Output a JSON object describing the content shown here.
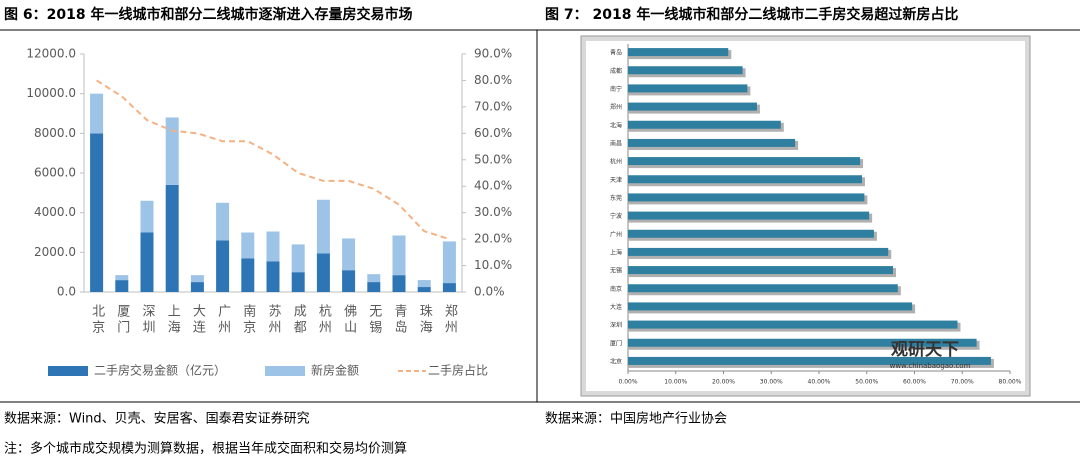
{
  "chart_data": [
    {
      "type": "stacked-bar-line",
      "title": "图 6：2018 年一线城市和部分二线城市逐渐进入存量房交易市场",
      "categories": [
        "北京",
        "厦门",
        "深圳",
        "上海",
        "大连",
        "广州",
        "南京",
        "苏州",
        "成都",
        "杭州",
        "佛山",
        "无锡",
        "青岛",
        "珠海",
        "郑州"
      ],
      "series": [
        {
          "name": "二手房交易金额（亿元）",
          "color": "#2e75b6",
          "values": [
            8000,
            600,
            3000,
            5400,
            500,
            2600,
            1700,
            1550,
            1000,
            1950,
            1100,
            500,
            850,
            250,
            450
          ]
        },
        {
          "name": "新房金额",
          "color": "#9dc3e6",
          "values": [
            2000,
            250,
            1600,
            3400,
            350,
            1900,
            1300,
            1500,
            1400,
            2700,
            1600,
            400,
            2000,
            350,
            2100
          ]
        },
        {
          "name": "二手房占比",
          "color": "#f4b183",
          "axis": "y2",
          "values": [
            80,
            74,
            65,
            61,
            60,
            57,
            57,
            52,
            45,
            42,
            42,
            39,
            33,
            23,
            20
          ]
        }
      ],
      "ylim": [
        0,
        12000
      ],
      "yticks": [
        {
          "value": 0,
          "label": "0.0"
        },
        {
          "value": 2000,
          "label": "2000.0"
        },
        {
          "value": 4000,
          "label": "4000.0"
        },
        {
          "value": 6000,
          "label": "6000.0"
        },
        {
          "value": 8000,
          "label": "8000.0"
        },
        {
          "value": 10000,
          "label": "10000.0"
        },
        {
          "value": 12000,
          "label": "12000.0"
        }
      ],
      "y2lim": [
        0,
        90
      ],
      "y2ticks": [
        {
          "value": 0,
          "label": "0.0%"
        },
        {
          "value": 10,
          "label": "10.0%"
        },
        {
          "value": 20,
          "label": "20.0%"
        },
        {
          "value": 30,
          "label": "30.0%"
        },
        {
          "value": 40,
          "label": "40.0%"
        },
        {
          "value": 50,
          "label": "50.0%"
        },
        {
          "value": 60,
          "label": "60.0%"
        },
        {
          "value": 70,
          "label": "70.0%"
        },
        {
          "value": 80,
          "label": "80.0%"
        },
        {
          "value": 90,
          "label": "90.0%"
        }
      ]
    },
    {
      "type": "horizontal-bar",
      "title": "图 7：  2018 年一线城市和部分二线城市二手房交易超过新房占比",
      "categories": [
        "青岛",
        "成都",
        "南宁",
        "郑州",
        "北海",
        "南昌",
        "杭州",
        "天津",
        "东莞",
        "宁波",
        "广州",
        "上海",
        "无锡",
        "南京",
        "大连",
        "深圳",
        "厦门",
        "北京"
      ],
      "values": [
        21,
        24,
        25,
        27,
        32,
        35,
        48.6,
        49,
        49.5,
        50.5,
        51.5,
        54.5,
        55.5,
        56.5,
        59.5,
        69,
        73,
        76
      ],
      "color": "#2f7fa0",
      "shadow_color": "#b0b0b0",
      "xlim": [
        0,
        80
      ],
      "xticks": [
        {
          "value": 0,
          "label": "0.00%"
        },
        {
          "value": 10,
          "label": "10.00%"
        },
        {
          "value": 20,
          "label": "20.00%"
        },
        {
          "value": 30,
          "label": "30.00%"
        },
        {
          "value": 40,
          "label": "40.00%"
        },
        {
          "value": 50,
          "label": "50.00%"
        },
        {
          "value": 60,
          "label": "60.00%"
        },
        {
          "value": 70,
          "label": "70.00%"
        },
        {
          "value": 80,
          "label": "80.00%"
        }
      ],
      "watermark": "观研天下",
      "watermark_url": "www.chinabaogao.com"
    }
  ],
  "sources": [
    "数据来源：Wind、贝壳、安居客、国泰君安证券研究",
    "数据来源：中国房地产行业协会"
  ],
  "note": "注：多个城市成交规模为测算数据，根据当年成交面积和交易均价测算"
}
